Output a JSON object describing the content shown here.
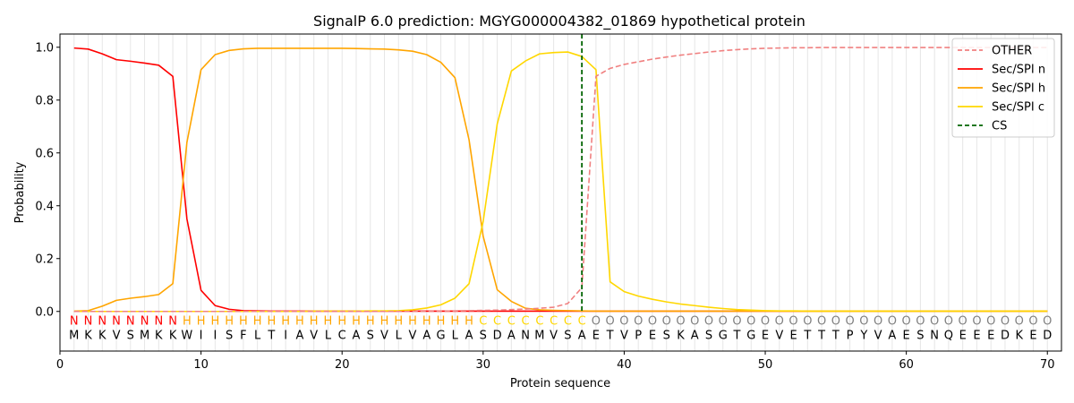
{
  "chart_data": {
    "type": "line",
    "title": "SignalP 6.0 prediction: MGYG000004382_01869 hypothetical protein",
    "xlabel": "Protein sequence",
    "ylabel": "Probability",
    "xlim": [
      0,
      71
    ],
    "ylim": [
      -0.15,
      1.05
    ],
    "xticks": [
      0,
      10,
      20,
      30,
      40,
      50,
      60,
      70
    ],
    "yticks": [
      0.0,
      0.2,
      0.4,
      0.6,
      0.8,
      1.0
    ],
    "x_grid": "vertical lines at each residue position",
    "legend_position": "top-right",
    "sequence": [
      "M",
      "K",
      "K",
      "V",
      "S",
      "M",
      "K",
      "K",
      "W",
      "I",
      "I",
      "S",
      "F",
      "L",
      "T",
      "I",
      "A",
      "V",
      "L",
      "C",
      "A",
      "S",
      "V",
      "L",
      "V",
      "A",
      "G",
      "L",
      "A",
      "S",
      "D",
      "A",
      "N",
      "M",
      "V",
      "S",
      "A",
      "E",
      "T",
      "V",
      "P",
      "E",
      "S",
      "K",
      "A",
      "S",
      "G",
      "T",
      "G",
      "E",
      "V",
      "E",
      "T",
      "T",
      "T",
      "P",
      "Y",
      "V",
      "A",
      "E",
      "S",
      "N",
      "Q",
      "E",
      "E",
      "E",
      "D",
      "K",
      "E",
      "D"
    ],
    "labels": [
      "N",
      "N",
      "N",
      "N",
      "N",
      "N",
      "N",
      "N",
      "H",
      "H",
      "H",
      "H",
      "H",
      "H",
      "H",
      "H",
      "H",
      "H",
      "H",
      "H",
      "H",
      "H",
      "H",
      "H",
      "H",
      "H",
      "H",
      "H",
      "H",
      "C",
      "C",
      "C",
      "C",
      "C",
      "C",
      "C",
      "C",
      "O",
      "O",
      "O",
      "O",
      "O",
      "O",
      "O",
      "O",
      "O",
      "O",
      "O",
      "O",
      "O",
      "O",
      "O",
      "O",
      "O",
      "O",
      "O",
      "O",
      "O",
      "O",
      "O",
      "O",
      "O",
      "O",
      "O",
      "O",
      "O",
      "O",
      "O",
      "O",
      "O"
    ],
    "label_colors": {
      "N": "#ff0000",
      "H": "#ffa500",
      "C": "#ffd700",
      "O": "#808080"
    },
    "cleavage_site": 37,
    "series": [
      {
        "name": "OTHER",
        "color": "#f08080",
        "style": "dashed",
        "values": [
          0.0,
          0.0,
          0.0,
          0.0,
          0.0,
          0.0,
          0.0,
          0.0,
          0.0,
          0.0,
          0.0,
          0.0,
          0.0,
          0.0,
          0.0,
          0.0,
          0.0,
          0.0,
          0.0,
          0.0,
          0.0,
          0.0,
          0.0,
          0.0,
          0.0,
          0.0,
          0.001,
          0.002,
          0.003,
          0.004,
          0.005,
          0.007,
          0.009,
          0.012,
          0.016,
          0.03,
          0.09,
          0.89,
          0.92,
          0.935,
          0.945,
          0.955,
          0.963,
          0.97,
          0.976,
          0.982,
          0.987,
          0.991,
          0.994,
          0.996,
          0.997,
          0.998,
          0.998,
          0.999,
          0.999,
          0.999,
          0.999,
          0.999,
          0.999,
          0.999,
          0.999,
          0.999,
          0.999,
          0.999,
          0.999,
          0.999,
          0.999,
          0.999,
          0.999,
          0.999
        ]
      },
      {
        "name": "Sec/SPI n",
        "color": "#ff0000",
        "style": "solid",
        "values": [
          0.997,
          0.993,
          0.975,
          0.953,
          0.947,
          0.94,
          0.932,
          0.89,
          0.35,
          0.08,
          0.022,
          0.008,
          0.003,
          0.002,
          0.001,
          0.001,
          0.001,
          0.001,
          0.001,
          0.001,
          0.001,
          0.001,
          0.001,
          0.001,
          0.001,
          0.001,
          0.001,
          0.001,
          0.001,
          0.001,
          0.001,
          0.001,
          0.001,
          0.001,
          0.001,
          0.001,
          0.001,
          0.001,
          0.001,
          0.001,
          0.001,
          0.001,
          0.001,
          0.001,
          0.001,
          0.001,
          0.001,
          0.001,
          0.001,
          0.001,
          0.001,
          0.001,
          0.001,
          0.001,
          0.001,
          0.001,
          0.001,
          0.001,
          0.001,
          0.001,
          0.001,
          0.001,
          0.001,
          0.001,
          0.001,
          0.001,
          0.001,
          0.001,
          0.001,
          0.001
        ]
      },
      {
        "name": "Sec/SPI h",
        "color": "#ffa500",
        "style": "solid",
        "values": [
          0.001,
          0.003,
          0.02,
          0.042,
          0.05,
          0.056,
          0.064,
          0.105,
          0.64,
          0.915,
          0.972,
          0.988,
          0.994,
          0.996,
          0.996,
          0.996,
          0.996,
          0.996,
          0.996,
          0.996,
          0.995,
          0.994,
          0.993,
          0.99,
          0.985,
          0.972,
          0.943,
          0.885,
          0.65,
          0.285,
          0.082,
          0.038,
          0.012,
          0.006,
          0.004,
          0.003,
          0.002,
          0.001,
          0.001,
          0.001,
          0.001,
          0.001,
          0.001,
          0.001,
          0.001,
          0.001,
          0.001,
          0.001,
          0.001,
          0.001,
          0.001,
          0.001,
          0.001,
          0.001,
          0.001,
          0.001,
          0.001,
          0.001,
          0.001,
          0.001,
          0.001,
          0.001,
          0.001,
          0.001,
          0.001,
          0.001,
          0.001,
          0.001,
          0.001,
          0.001
        ]
      },
      {
        "name": "Sec/SPI c",
        "color": "#ffd700",
        "style": "solid",
        "values": [
          0.0,
          0.0,
          0.0,
          0.0,
          0.0,
          0.0,
          0.0,
          0.0,
          0.0,
          0.0,
          0.0,
          0.0,
          0.0,
          0.0,
          0.0,
          0.0,
          0.0,
          0.001,
          0.001,
          0.001,
          0.001,
          0.002,
          0.002,
          0.003,
          0.006,
          0.013,
          0.025,
          0.05,
          0.105,
          0.34,
          0.71,
          0.91,
          0.948,
          0.975,
          0.98,
          0.982,
          0.965,
          0.915,
          0.112,
          0.075,
          0.058,
          0.046,
          0.036,
          0.028,
          0.022,
          0.016,
          0.011,
          0.007,
          0.005,
          0.003,
          0.002,
          0.002,
          0.001,
          0.001,
          0.001,
          0.001,
          0.001,
          0.001,
          0.001,
          0.001,
          0.001,
          0.001,
          0.001,
          0.001,
          0.001,
          0.001,
          0.001,
          0.001,
          0.001,
          0.001
        ]
      },
      {
        "name": "CS",
        "color": "#006400",
        "style": "dashed-vertical"
      }
    ],
    "xtick_labels": [
      "0",
      "10",
      "20",
      "30",
      "40",
      "50",
      "60",
      "70"
    ],
    "ytick_labels": [
      "0.0",
      "0.2",
      "0.4",
      "0.6",
      "0.8",
      "1.0"
    ]
  }
}
